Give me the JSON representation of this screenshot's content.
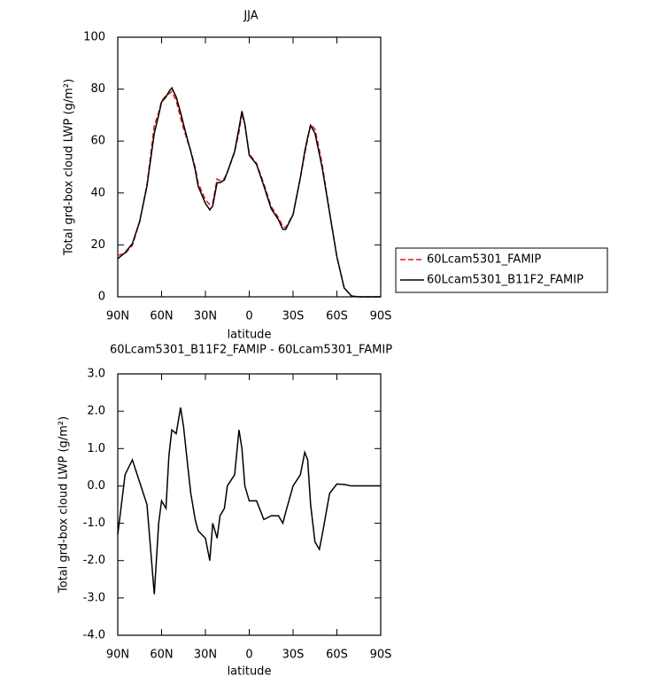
{
  "chart_data": [
    {
      "type": "line",
      "title": "JJA",
      "x_label": "latitude",
      "y_label": "Total grd-box cloud LWP (g/m²)",
      "x": [
        90,
        85,
        80,
        75,
        70,
        65,
        62,
        60,
        57,
        55,
        53,
        50,
        47,
        45,
        42,
        40,
        37,
        35,
        30,
        27,
        25,
        22,
        20,
        17,
        15,
        10,
        7,
        5,
        3,
        0,
        -5,
        -10,
        -15,
        -20,
        -23,
        -25,
        -30,
        -35,
        -38,
        -40,
        -42,
        -45,
        -48,
        -50,
        -55,
        -60,
        -65,
        -70,
        -75,
        -80,
        -85,
        -90
      ],
      "xlim": [
        90,
        -90
      ],
      "xticks": [
        {
          "value": 90,
          "label": "90N"
        },
        {
          "value": 60,
          "label": "60N"
        },
        {
          "value": 30,
          "label": "30N"
        },
        0,
        {
          "value": -30,
          "label": "30S"
        },
        {
          "value": -60,
          "label": "60S"
        },
        {
          "value": -90,
          "label": "90S"
        }
      ],
      "ylim": [
        0,
        100
      ],
      "yticks": [
        0,
        20,
        40,
        60,
        80,
        100
      ],
      "legend": "right",
      "series": [
        {
          "name": "60Lcam5301_FAMIP",
          "color": "#e8141c",
          "line_style": "dashed",
          "values": [
            16.0,
            16.7,
            19.8,
            28.9,
            43.2,
            65.9,
            71,
            75.4,
            77.6,
            78.2,
            79,
            75.6,
            68.9,
            64.9,
            59.5,
            56.2,
            49.9,
            43.9,
            37.4,
            35.5,
            36,
            45.4,
            44.8,
            45.6,
            48,
            55.7,
            63.5,
            70.5,
            66.5,
            55,
            51.4,
            43.6,
            34.8,
            30.5,
            27,
            26.7,
            31.7,
            45.7,
            55.1,
            60.7,
            66.5,
            64.5,
            56.7,
            50.8,
            32.6,
            15.35,
            3.36,
            0.3,
            0,
            0,
            0,
            0
          ]
        },
        {
          "name": "60Lcam5301_B11F2_FAMIP",
          "color": "#000000",
          "line_style": "solid",
          "values": [
            14.7,
            17,
            20.5,
            29,
            42.7,
            63,
            70,
            75,
            77,
            79,
            80.5,
            77,
            71,
            66.5,
            60,
            56,
            49,
            42.7,
            36,
            33.5,
            35,
            44,
            44,
            45,
            48,
            56,
            65,
            71.5,
            66.5,
            54.6,
            51,
            42.7,
            34,
            29.7,
            26,
            26,
            31.7,
            46,
            56,
            61.4,
            66,
            63,
            55,
            49.5,
            32.4,
            15.4,
            3.4,
            0.3,
            0,
            0,
            0,
            0
          ]
        }
      ]
    },
    {
      "type": "line",
      "title": "60Lcam5301_B11F2_FAMIP - 60Lcam5301_FAMIP",
      "x_label": "latitude",
      "y_label": "Total grd-box cloud LWP (g/m²)",
      "x": [
        90,
        85,
        80,
        75,
        70,
        65,
        62,
        60,
        57,
        55,
        53,
        50,
        47,
        45,
        42,
        40,
        37,
        35,
        30,
        27,
        25,
        22,
        20,
        17,
        15,
        10,
        7,
        5,
        3,
        0,
        -5,
        -10,
        -15,
        -20,
        -23,
        -25,
        -30,
        -35,
        -38,
        -40,
        -42,
        -45,
        -48,
        -50,
        -55,
        -60,
        -65,
        -70,
        -75,
        -80,
        -85,
        -90
      ],
      "xlim": [
        90,
        -90
      ],
      "xticks": [
        {
          "value": 90,
          "label": "90N"
        },
        {
          "value": 60,
          "label": "60N"
        },
        {
          "value": 30,
          "label": "30N"
        },
        0,
        {
          "value": -30,
          "label": "30S"
        },
        {
          "value": -60,
          "label": "60S"
        },
        {
          "value": -90,
          "label": "90S"
        }
      ],
      "ylim": [
        -4,
        3
      ],
      "yticks": [
        {
          "value": -4,
          "label": "-4.0"
        },
        {
          "value": -3,
          "label": "-3.0"
        },
        {
          "value": -2,
          "label": "-2.0"
        },
        {
          "value": -1,
          "label": "-1.0"
        },
        {
          "value": 0,
          "label": "0.0"
        },
        {
          "value": 1,
          "label": "1.0"
        },
        {
          "value": 2,
          "label": "2.0"
        },
        {
          "value": 3,
          "label": "3.0"
        }
      ],
      "series": [
        {
          "color": "#000000",
          "line_style": "solid",
          "values": [
            -1.3,
            0.3,
            0.7,
            0.1,
            -0.5,
            -2.9,
            -1.0,
            -0.4,
            -0.6,
            0.8,
            1.5,
            1.4,
            2.1,
            1.6,
            0.5,
            -0.2,
            -0.9,
            -1.2,
            -1.4,
            -2.0,
            -1.0,
            -1.4,
            -0.8,
            -0.6,
            0.0,
            0.3,
            1.5,
            1.0,
            0.0,
            -0.4,
            -0.4,
            -0.9,
            -0.8,
            -0.8,
            -1.0,
            -0.7,
            0.0,
            0.3,
            0.9,
            0.7,
            -0.5,
            -1.5,
            -1.7,
            -1.3,
            -0.2,
            0.05,
            0.04,
            0,
            0,
            0,
            0,
            0
          ]
        }
      ]
    }
  ]
}
